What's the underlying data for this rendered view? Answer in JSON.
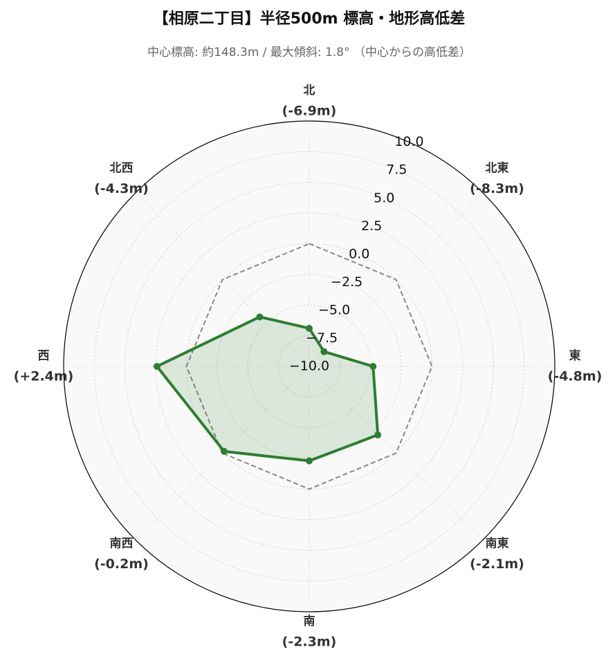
{
  "chart_data": {
    "type": "radar",
    "title": "【相原二丁目】半径500m 標高・地形高低差",
    "subtitle": "中心標高: 約148.3m / 最大傾斜: 1.8° （中心からの高低差）",
    "categories": [
      "北",
      "北東",
      "東",
      "南東",
      "南",
      "南西",
      "西",
      "北西"
    ],
    "values": [
      -6.9,
      -8.3,
      -4.8,
      -2.1,
      -2.3,
      -0.2,
      2.4,
      -4.3
    ],
    "value_labels": [
      "(-6.9m)",
      "(-8.3m)",
      "(-4.8m)",
      "(-2.1m)",
      "(-2.3m)",
      "(-0.2m)",
      "(+2.4m)",
      "(-4.3m)"
    ],
    "color": "#2e7d32",
    "reference_line": {
      "value": 0,
      "color": "#888888",
      "style": "dashed"
    },
    "ylim": [
      -10,
      10
    ],
    "yticks": [
      {
        "value": -10,
        "label": "−10.0"
      },
      {
        "value": -7.5,
        "label": "−7.5"
      },
      {
        "value": -5,
        "label": "−5.0"
      },
      {
        "value": -2.5,
        "label": "−2.5"
      },
      {
        "value": 0,
        "label": "0.0"
      },
      {
        "value": 2.5,
        "label": "2.5"
      },
      {
        "value": 5,
        "label": "5.0"
      },
      {
        "value": 7.5,
        "label": "7.5"
      },
      {
        "value": 10,
        "label": "10.0"
      }
    ],
    "grid": true
  }
}
